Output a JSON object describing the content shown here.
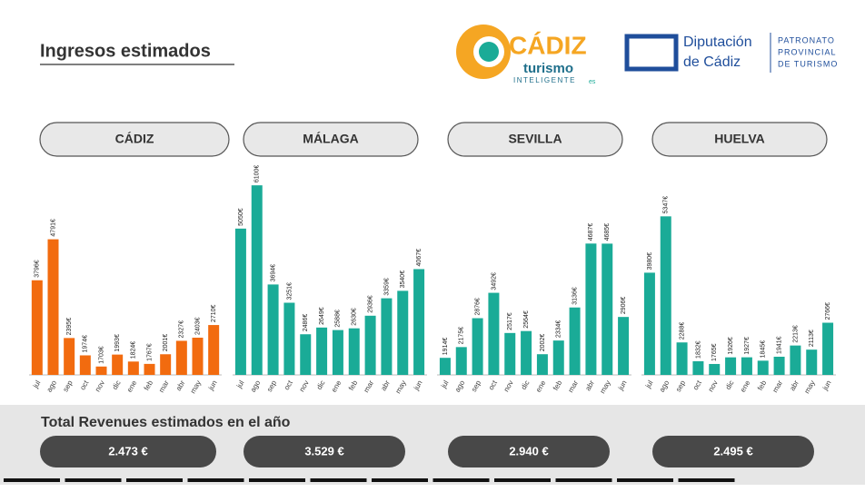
{
  "header": {
    "title": "Ingresos estimados"
  },
  "logos": {
    "brand": "CÁDIZ",
    "subtitle": "turismo",
    "tagline": "INTELIGENTE",
    "domain": "es",
    "org": "Diputación",
    "org_2": "de Cádiz",
    "dept": [
      "PATRONATO",
      "PROVINCIAL",
      "DE TURISMO"
    ]
  },
  "chart_data": [
    {
      "type": "bar",
      "title": "CÁDIZ",
      "color": "#f26b0f",
      "ylim": [
        1500,
        6500
      ],
      "categories": [
        "jul",
        "ago",
        "sep",
        "oct",
        "nov",
        "dic",
        "ene",
        "feb",
        "mar",
        "abr",
        "may",
        "jun"
      ],
      "values": [
        3796,
        4791,
        2395,
        1974,
        1703,
        1993,
        1824,
        1767,
        2001,
        2327,
        2403,
        2710
      ],
      "value_labels": [
        "3796€",
        "4791€",
        "2395€",
        "1974€",
        "1703€",
        "1993€",
        "1824€",
        "1767€",
        "2001€",
        "2327€",
        "2403€",
        "2710€"
      ]
    },
    {
      "type": "bar",
      "title": "MÁLAGA",
      "color": "#1aab97",
      "ylim": [
        1500,
        6500
      ],
      "categories": [
        "jul",
        "ago",
        "sep",
        "oct",
        "nov",
        "dic",
        "ene",
        "feb",
        "mar",
        "abr",
        "may",
        "jun"
      ],
      "values": [
        5050,
        6100,
        3694,
        3251,
        2486,
        2649,
        2588,
        2630,
        2936,
        3359,
        3540,
        4067
      ],
      "value_labels": [
        "5050€",
        "6100€",
        "3694€",
        "3251€",
        "2486€",
        "2649€",
        "2588€",
        "2630€",
        "2936€",
        "3359€",
        "3540€",
        "4067€"
      ]
    },
    {
      "type": "bar",
      "title": "SEVILLA",
      "color": "#1aab97",
      "ylim": [
        1500,
        6500
      ],
      "categories": [
        "jul",
        "ago",
        "sep",
        "oct",
        "nov",
        "dic",
        "ene",
        "feb",
        "mar",
        "abr",
        "may",
        "jun"
      ],
      "values": [
        1914,
        2175,
        2876,
        3492,
        2517,
        2564,
        2002,
        2334,
        3136,
        4687,
        4685,
        2906
      ],
      "value_labels": [
        "1914€",
        "2175€",
        "2876€",
        "3492€",
        "2517€",
        "2564€",
        "2002€",
        "2334€",
        "3136€",
        "4687€",
        "4685€",
        "2906€"
      ]
    },
    {
      "type": "bar",
      "title": "HUELVA",
      "color": "#1aab97",
      "ylim": [
        1500,
        6500
      ],
      "categories": [
        "jul",
        "ago",
        "sep",
        "oct",
        "nov",
        "dic",
        "ene",
        "feb",
        "mar",
        "abr",
        "may",
        "jun"
      ],
      "values": [
        3980,
        5347,
        2288,
        1832,
        1765,
        1926,
        1927,
        1845,
        1941,
        2213,
        2113,
        2766
      ],
      "value_labels": [
        "3980€",
        "5347€",
        "2288€",
        "1832€",
        "1765€",
        "1926€",
        "1927€",
        "1845€",
        "1941€",
        "2213€",
        "2113€",
        "2766€"
      ]
    }
  ],
  "totals": {
    "title": "Total Revenues estimados en el año",
    "values": [
      "2.473 €",
      "3.529 €",
      "2.940 €",
      "2.495 €"
    ]
  }
}
